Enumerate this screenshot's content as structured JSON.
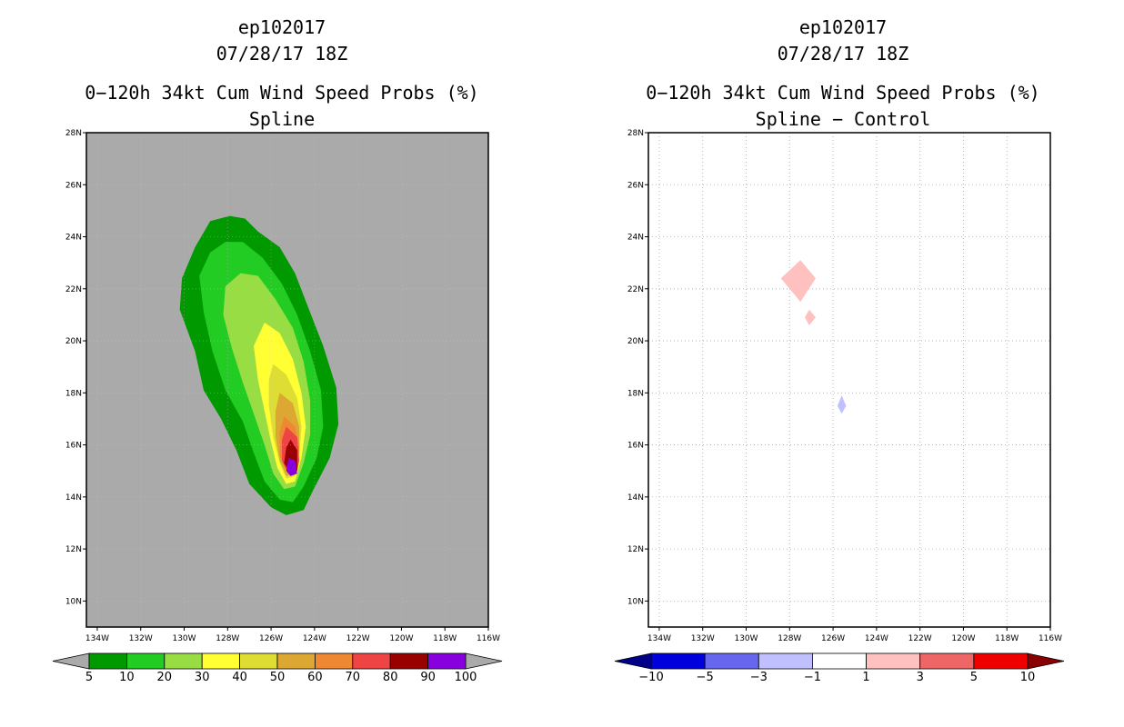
{
  "chart_data": [
    {
      "type": "contour-map",
      "title_lines": [
        "ep102017",
        "07/28/17 18Z",
        "0−120h 34kt Cum Wind Speed Probs (%)",
        "Spline"
      ],
      "x_ticks": [
        "134W",
        "132W",
        "130W",
        "128W",
        "126W",
        "124W",
        "122W",
        "120W",
        "118W",
        "116W"
      ],
      "y_ticks": [
        "28N",
        "26N",
        "24N",
        "22N",
        "20N",
        "18N",
        "16N",
        "14N",
        "12N",
        "10N"
      ],
      "lon_range": [
        -134.5,
        -116
      ],
      "lat_range": [
        9,
        28
      ],
      "background": "#aaaaaa",
      "center": {
        "lon": -124.9,
        "lat": 15.0
      },
      "contour_levels": [
        5,
        10,
        20,
        30,
        40,
        50,
        60,
        70,
        80,
        90
      ],
      "contour_colors": [
        "#009900",
        "#22cc22",
        "#99dd44",
        "#ffff33",
        "#dddd33",
        "#dda733",
        "#ee8833",
        "#ee4444",
        "#990000",
        "#8800dd"
      ],
      "contours": [
        {
          "level": 5,
          "polygon": [
            [
              -128.8,
              24.6
            ],
            [
              -127.9,
              24.8
            ],
            [
              -127.2,
              24.7
            ],
            [
              -126.6,
              24.2
            ],
            [
              -125.6,
              23.6
            ],
            [
              -124.9,
              22.6
            ],
            [
              -124.3,
              21.3
            ],
            [
              -123.6,
              19.8
            ],
            [
              -123.0,
              18.2
            ],
            [
              -122.9,
              16.8
            ],
            [
              -123.3,
              15.5
            ],
            [
              -124.1,
              14.2
            ],
            [
              -124.5,
              13.5
            ],
            [
              -125.3,
              13.3
            ],
            [
              -126.0,
              13.6
            ],
            [
              -127.0,
              14.5
            ],
            [
              -127.6,
              15.8
            ],
            [
              -128.3,
              17.0
            ],
            [
              -129.1,
              18.1
            ],
            [
              -129.5,
              19.6
            ],
            [
              -130.2,
              21.2
            ],
            [
              -130.1,
              22.4
            ],
            [
              -129.5,
              23.6
            ]
          ]
        },
        {
          "level": 10,
          "polygon": [
            [
              -128.1,
              23.8
            ],
            [
              -127.3,
              23.8
            ],
            [
              -126.4,
              23.2
            ],
            [
              -125.5,
              22.2
            ],
            [
              -124.8,
              21.0
            ],
            [
              -124.2,
              19.6
            ],
            [
              -123.7,
              18.1
            ],
            [
              -123.6,
              16.7
            ],
            [
              -123.9,
              15.5
            ],
            [
              -124.5,
              14.4
            ],
            [
              -125.0,
              13.8
            ],
            [
              -125.6,
              13.9
            ],
            [
              -126.3,
              14.6
            ],
            [
              -126.8,
              15.7
            ],
            [
              -127.3,
              16.9
            ],
            [
              -128.1,
              18.1
            ],
            [
              -128.7,
              19.6
            ],
            [
              -129.1,
              21.1
            ],
            [
              -129.3,
              22.5
            ],
            [
              -128.8,
              23.4
            ]
          ]
        },
        {
          "level": 20,
          "polygon": [
            [
              -127.4,
              22.6
            ],
            [
              -126.6,
              22.5
            ],
            [
              -125.8,
              21.6
            ],
            [
              -125.0,
              20.5
            ],
            [
              -124.5,
              19.2
            ],
            [
              -124.2,
              17.7
            ],
            [
              -124.2,
              16.4
            ],
            [
              -124.5,
              15.3
            ],
            [
              -124.9,
              14.4
            ],
            [
              -125.4,
              14.3
            ],
            [
              -125.9,
              14.9
            ],
            [
              -126.3,
              16.0
            ],
            [
              -126.8,
              17.2
            ],
            [
              -127.3,
              18.4
            ],
            [
              -127.8,
              19.7
            ],
            [
              -128.2,
              21.0
            ],
            [
              -128.1,
              22.1
            ]
          ]
        },
        {
          "level": 30,
          "polygon": [
            [
              -126.3,
              20.7
            ],
            [
              -125.6,
              20.3
            ],
            [
              -125.0,
              19.3
            ],
            [
              -124.6,
              18.0
            ],
            [
              -124.4,
              16.7
            ],
            [
              -124.6,
              15.5
            ],
            [
              -124.9,
              14.6
            ],
            [
              -125.3,
              14.5
            ],
            [
              -125.7,
              15.1
            ],
            [
              -126.0,
              16.1
            ],
            [
              -126.3,
              17.3
            ],
            [
              -126.6,
              18.5
            ],
            [
              -126.8,
              19.8
            ]
          ]
        },
        {
          "level": 40,
          "polygon": [
            [
              -125.9,
              19.1
            ],
            [
              -125.3,
              18.7
            ],
            [
              -124.8,
              17.8
            ],
            [
              -124.6,
              16.7
            ],
            [
              -124.7,
              15.6
            ],
            [
              -124.9,
              14.8
            ],
            [
              -125.3,
              14.7
            ],
            [
              -125.6,
              15.3
            ],
            [
              -125.9,
              16.3
            ],
            [
              -126.1,
              17.5
            ],
            [
              -126.1,
              18.5
            ]
          ]
        },
        {
          "level": 50,
          "polygon": [
            [
              -125.6,
              18.0
            ],
            [
              -125.0,
              17.6
            ],
            [
              -124.7,
              16.7
            ],
            [
              -124.7,
              15.7
            ],
            [
              -124.9,
              14.9
            ],
            [
              -125.3,
              14.8
            ],
            [
              -125.6,
              15.4
            ],
            [
              -125.8,
              16.3
            ],
            [
              -125.8,
              17.3
            ]
          ]
        },
        {
          "level": 60,
          "polygon": [
            [
              -125.4,
              17.1
            ],
            [
              -124.9,
              16.7
            ],
            [
              -124.7,
              15.9
            ],
            [
              -124.8,
              15.1
            ],
            [
              -125.0,
              14.9
            ],
            [
              -125.3,
              15.0
            ],
            [
              -125.6,
              15.6
            ],
            [
              -125.6,
              16.5
            ]
          ]
        },
        {
          "level": 70,
          "polygon": [
            [
              -125.3,
              16.7
            ],
            [
              -124.8,
              16.3
            ],
            [
              -124.7,
              15.4
            ],
            [
              -124.8,
              15.0
            ],
            [
              -125.2,
              14.9
            ],
            [
              -125.5,
              15.4
            ],
            [
              -125.5,
              16.2
            ]
          ]
        },
        {
          "level": 80,
          "polygon": [
            [
              -125.1,
              16.2
            ],
            [
              -124.8,
              15.8
            ],
            [
              -124.8,
              15.0
            ],
            [
              -125.1,
              14.9
            ],
            [
              -125.4,
              15.3
            ],
            [
              -125.3,
              15.9
            ]
          ]
        },
        {
          "level": 90,
          "polygon": [
            [
              -125.2,
              15.5
            ],
            [
              -124.9,
              15.4
            ],
            [
              -124.8,
              14.9
            ],
            [
              -125.1,
              14.8
            ],
            [
              -125.3,
              15.0
            ]
          ]
        }
      ],
      "colorbar": {
        "labels": [
          "5",
          "10",
          "20",
          "30",
          "40",
          "50",
          "60",
          "70",
          "80",
          "90",
          "100"
        ],
        "colors": [
          "#009900",
          "#22cc22",
          "#99dd44",
          "#ffff33",
          "#dddd33",
          "#dda733",
          "#ee8833",
          "#ee4444",
          "#990000",
          "#8800dd"
        ],
        "end_colors": [
          "#aaaaaa",
          "#aaaaaa"
        ]
      }
    },
    {
      "type": "contour-map",
      "title_lines": [
        "ep102017",
        "07/28/17 18Z",
        "0−120h 34kt Cum Wind Speed Probs (%)",
        "Spline − Control"
      ],
      "x_ticks": [
        "134W",
        "132W",
        "130W",
        "128W",
        "126W",
        "124W",
        "122W",
        "120W",
        "118W",
        "116W"
      ],
      "y_ticks": [
        "28N",
        "26N",
        "24N",
        "22N",
        "20N",
        "18N",
        "16N",
        "14N",
        "12N",
        "10N"
      ],
      "lon_range": [
        -134.5,
        -116
      ],
      "lat_range": [
        9,
        28
      ],
      "background": "#ffffff",
      "grid": true,
      "anomalies": [
        {
          "sign": "+",
          "level": 1,
          "color": "#ffc0c0",
          "polygon": [
            [
              -127.5,
              23.1
            ],
            [
              -126.8,
              22.4
            ],
            [
              -127.5,
              21.5
            ],
            [
              -128.4,
              22.4
            ]
          ]
        },
        {
          "sign": "+",
          "level": 1,
          "color": "#ffc0c0",
          "polygon": [
            [
              -127.1,
              21.2
            ],
            [
              -126.8,
              20.9
            ],
            [
              -127.1,
              20.6
            ],
            [
              -127.3,
              20.9
            ]
          ]
        },
        {
          "sign": "-",
          "level": -1,
          "color": "#c0c0ff",
          "polygon": [
            [
              -125.6,
              17.9
            ],
            [
              -125.4,
              17.5
            ],
            [
              -125.6,
              17.2
            ],
            [
              -125.8,
              17.5
            ]
          ]
        }
      ],
      "colorbar": {
        "labels": [
          "−10",
          "−5",
          "−3",
          "−1",
          "1",
          "3",
          "5",
          "10"
        ],
        "colors": [
          "#0000dd",
          "#6666ee",
          "#c0c0ff",
          "#ffffff",
          "#ffc0c0",
          "#ee6666",
          "#ee0000"
        ],
        "end_colors": [
          "#000088",
          "#880000"
        ]
      }
    }
  ]
}
